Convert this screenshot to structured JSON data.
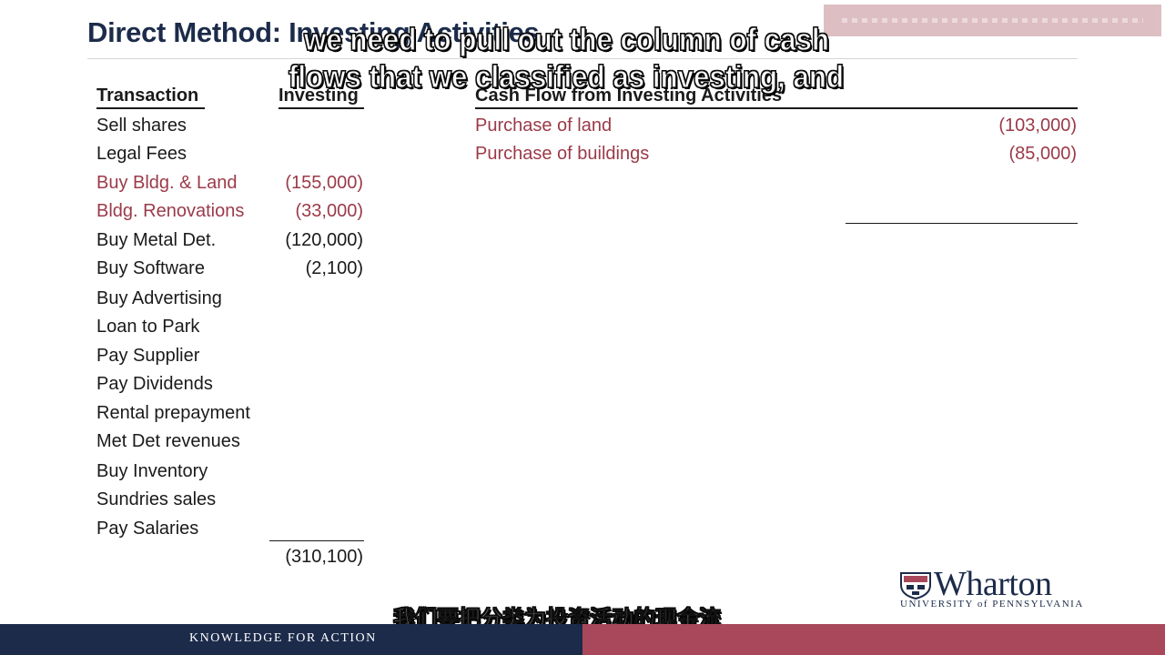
{
  "slide": {
    "title": "Direct Method: Investing Activities",
    "left_table": {
      "col_transaction": "Transaction",
      "col_investing": "Investing",
      "rows": [
        {
          "label": "Sell shares",
          "value": ""
        },
        {
          "label": "Legal Fees",
          "value": ""
        },
        {
          "label": "Buy Bldg. & Land",
          "value": "(155,000)"
        },
        {
          "label": "Bldg. Renovations",
          "value": "(33,000)"
        },
        {
          "label": "Buy Metal Det.",
          "value": "(120,000)"
        },
        {
          "label": "Buy Software",
          "value": "(2,100)"
        },
        {
          "label": "Buy Advertising",
          "value": ""
        },
        {
          "label": "Loan to Park",
          "value": ""
        },
        {
          "label": "Pay Supplier",
          "value": ""
        },
        {
          "label": "Pay Dividends",
          "value": ""
        },
        {
          "label": "Rental prepayment",
          "value": ""
        },
        {
          "label": "Met Det revenues",
          "value": ""
        },
        {
          "label": "Buy Inventory",
          "value": ""
        },
        {
          "label": "Sundries sales",
          "value": ""
        },
        {
          "label": "Pay Salaries",
          "value": ""
        }
      ],
      "total": "(310,100)"
    },
    "right_table": {
      "heading": "Cash Flow from Investing Activities",
      "rows": [
        {
          "label": "Purchase of land",
          "value": "(103,000)"
        },
        {
          "label": "Purchase of buildings",
          "value": "(85,000)"
        }
      ]
    },
    "colors": {
      "navy": "#1c2b4a",
      "maroon": "#9b3a48",
      "footer_red": "#a8485a"
    }
  },
  "subtitles": {
    "english_line1": "we need to pull out the column of cash",
    "english_line2": "flows that we classified as investing, and",
    "chinese": "我们要把分类为投资活动的现金流"
  },
  "logo": {
    "name": "Wharton",
    "sub": "UNIVERSITY of PENNSYLVANIA"
  },
  "footer": {
    "tagline": "KNOWLEDGE FOR ACTION"
  }
}
